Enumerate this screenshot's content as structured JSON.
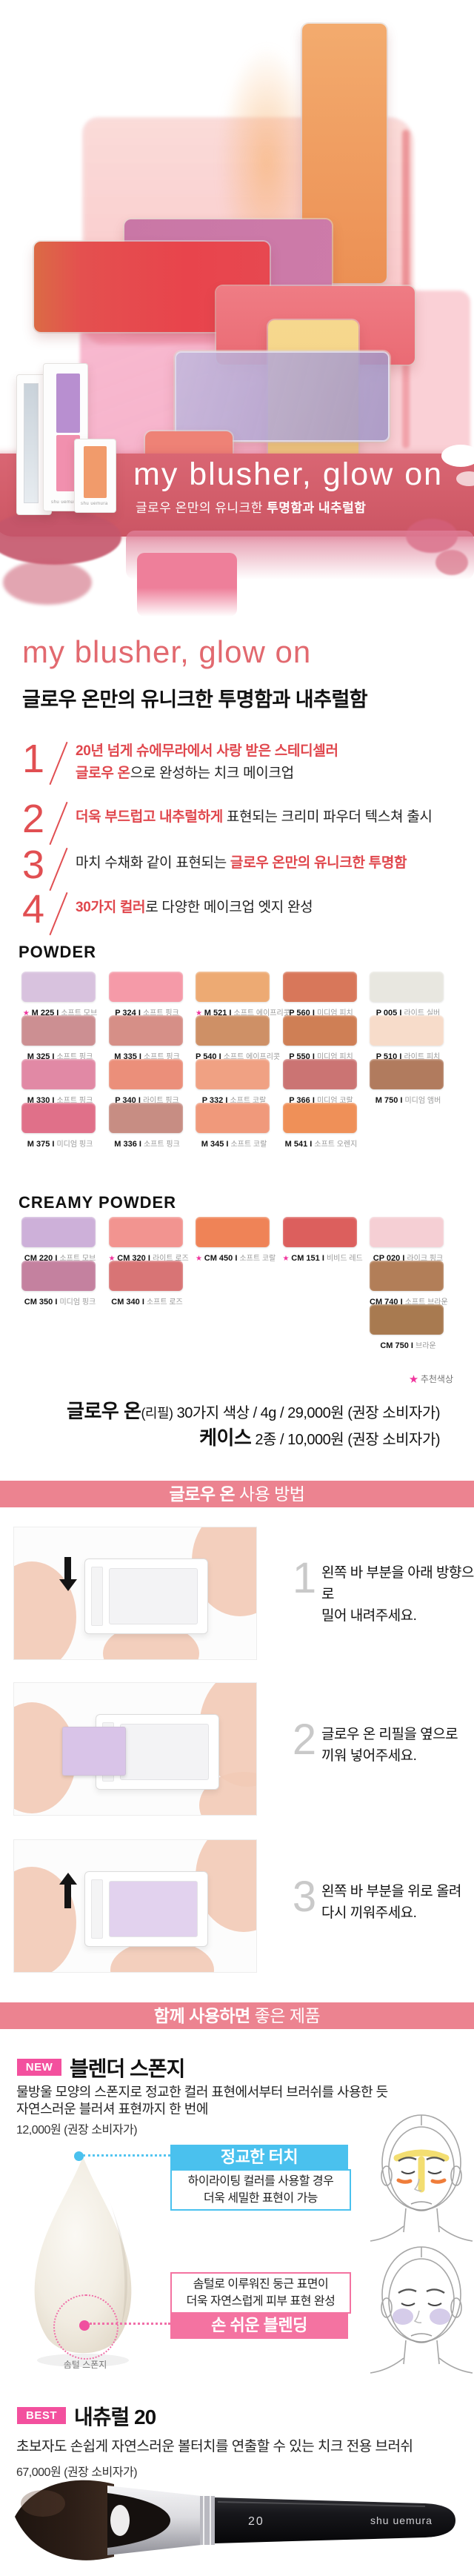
{
  "brand": "shu uemura",
  "hero": {
    "title": "my blusher, glow on",
    "subtitle_regular": "글로우 온만의 유니크한 ",
    "subtitle_bold": "투명함과 내추럴함"
  },
  "intro": {
    "title": "my blusher, glow on",
    "subtitle": "글로우 온만의 유니크한 투명함과 내추럴함"
  },
  "features": {
    "items": [
      {
        "num": "1",
        "line1_red": "20년 넘게 슈에무라에서 사랑 받은 스테디셀러",
        "line2_red": "글로우 온",
        "line2_rest": "으로 완성하는 치크 메이크업"
      },
      {
        "num": "2",
        "line1_red": "더욱 부드럽고 내추럴하게",
        "line1_rest": " 표현되는 크리미 파우더 텍스쳐 출시"
      },
      {
        "num": "3",
        "line1_pre": "마치 수채화 같이 표현되는 ",
        "line1_red": "글로우 온만의 유니크한 투명함"
      },
      {
        "num": "4",
        "line1_red": "30가지 컬러",
        "line1_rest": "로 다양한 메이크업 엣지 완성"
      }
    ]
  },
  "powder": {
    "heading": "POWDER",
    "swatches": [
      {
        "code": "M 225",
        "name": "소프트 모브",
        "color": "#d8c2de",
        "star": true,
        "row": 0,
        "col": 0
      },
      {
        "code": "P 324",
        "name": "소프트 핑크",
        "color": "#f59aa8",
        "star": false,
        "row": 0,
        "col": 1
      },
      {
        "code": "M 521",
        "name": "소프트 에이프리콧",
        "color": "#edaa73",
        "star": true,
        "row": 0,
        "col": 2
      },
      {
        "code": "P 560",
        "name": "미디엄 피치",
        "color": "#d8775a",
        "star": false,
        "row": 0,
        "col": 3
      },
      {
        "code": "P 005",
        "name": "라이트 실버",
        "color": "#e8e7e0",
        "star": false,
        "row": 0,
        "col": 4
      },
      {
        "code": "M 325",
        "name": "소프트 핑크",
        "color": "#cc8f92",
        "star": false,
        "row": 1,
        "col": 0
      },
      {
        "code": "M 335",
        "name": "소프트 핑크",
        "color": "#d68f87",
        "star": false,
        "row": 1,
        "col": 1
      },
      {
        "code": "P 540",
        "name": "소프트 에이프리콧",
        "color": "#ce9066",
        "star": false,
        "row": 1,
        "col": 2
      },
      {
        "code": "P 550",
        "name": "미디엄 피치",
        "color": "#cf7f55",
        "star": false,
        "row": 1,
        "col": 3
      },
      {
        "code": "P 510",
        "name": "라이트 피치",
        "color": "#f7dcca",
        "star": false,
        "row": 1,
        "col": 4
      },
      {
        "code": "M 330",
        "name": "소프트 핑크",
        "color": "#e189a5",
        "star": false,
        "row": 2,
        "col": 0
      },
      {
        "code": "P 340",
        "name": "라이트 핑크",
        "color": "#eb8f7a",
        "star": false,
        "row": 2,
        "col": 1
      },
      {
        "code": "P 332",
        "name": "소프트 코랄",
        "color": "#f0a183",
        "star": false,
        "row": 2,
        "col": 2
      },
      {
        "code": "P 366",
        "name": "미디엄 코랄",
        "color": "#cb7473",
        "star": false,
        "row": 2,
        "col": 3
      },
      {
        "code": "M 750",
        "name": "미디엄 앰버",
        "color": "#b17b5e",
        "star": false,
        "row": 2,
        "col": 4
      },
      {
        "code": "M 375",
        "name": "미디엄 핑크",
        "color": "#e07089",
        "star": false,
        "row": 3,
        "col": 0
      },
      {
        "code": "M 336",
        "name": "소프트 핑크",
        "color": "#c78d83",
        "star": false,
        "row": 3,
        "col": 1
      },
      {
        "code": "M 345",
        "name": "소프트 코랄",
        "color": "#f0997b",
        "star": false,
        "row": 3,
        "col": 2
      },
      {
        "code": "M 541",
        "name": "소프트 오렌지",
        "color": "#ef9058",
        "star": false,
        "row": 3,
        "col": 3
      }
    ]
  },
  "creamy": {
    "heading": "CREAMY POWDER",
    "swatches": [
      {
        "code": "CM 220",
        "name": "소프트 모브",
        "color": "#cdb0d9",
        "star": false,
        "row": 0,
        "col": 0
      },
      {
        "code": "CM 320",
        "name": "라이트 로즈",
        "color": "#f29490",
        "star": true,
        "row": 0,
        "col": 1
      },
      {
        "code": "CM 450",
        "name": "소프트 코랄",
        "color": "#ef8357",
        "star": true,
        "row": 0,
        "col": 2
      },
      {
        "code": "CM 151",
        "name": "비비드 레드",
        "color": "#dc5f5d",
        "star": true,
        "row": 0,
        "col": 3
      },
      {
        "code": "CP 020",
        "name": "라이크 핑크",
        "color": "#f5cfd4",
        "star": false,
        "row": 0,
        "col": 4
      },
      {
        "code": "CM 350",
        "name": "미디엄 핑크",
        "color": "#c4819f",
        "star": false,
        "row": 1,
        "col": 0
      },
      {
        "code": "CM 340",
        "name": "소프트 로즈",
        "color": "#d87475",
        "star": false,
        "row": 1,
        "col": 1
      },
      {
        "code": "CM 740",
        "name": "소프트 브라운",
        "color": "#b27e58",
        "star": false,
        "row": 1,
        "col": 4
      },
      {
        "code": "CM 750",
        "name": "브라운",
        "color": "#a87a50",
        "star": false,
        "row": 2,
        "col": 4
      }
    ]
  },
  "legend": {
    "star": "★",
    "label": "추천색상"
  },
  "price": {
    "line1_bold": "글로우 온",
    "line1_small": "(리필)",
    "line1_rest": " 30가지 색상 / 4g / 29,000원 (권장 소비자가)",
    "line2_bold": "케이스",
    "line2_rest": " 2종 / 10,000원 (권장 소비자가)"
  },
  "banners": {
    "usage_bold": "글로우 온",
    "usage_rest": " 사용 방법",
    "together_bold": "함께 사용하면",
    "together_rest": " 좋은 제품"
  },
  "usage": {
    "steps": [
      {
        "num": "1",
        "line1": "왼쪽 바 부분을 아래 방향으로",
        "line2": "밀어 내려주세요."
      },
      {
        "num": "2",
        "line1": "글로우 온 리필을 옆으로",
        "line2": "끼워 넣어주세요."
      },
      {
        "num": "3",
        "line1": "왼쪽 바 부분을 위로 올려",
        "line2": "다시 끼워주세요."
      }
    ]
  },
  "new_product": {
    "badge": "NEW",
    "title": "블렌더 스폰지",
    "desc1": "물방울 모양의 스폰지로 정교한 컬러 표현에서부터 브러쉬를 사용한 듯",
    "desc2": "자연스러운 블러셔 표현까지 한 번에",
    "price": "12,000원 (권장 소비자가)",
    "callout_blue": {
      "title": "정교한 터치",
      "line1": "하이라이팅 컬러를 사용할 경우",
      "line2": "더욱 세밀한 표현이 가능"
    },
    "callout_pink": {
      "line1": "솜털로 이루워진 둥근 표면이",
      "line2": "더욱 자연스럽게 피부 표현 완성",
      "title": "손 쉬운 블렌딩"
    },
    "sponge_label": "솜털 스폰지"
  },
  "best_product": {
    "badge": "BEST",
    "title": "내츄럴 20",
    "desc": "초보자도 손쉽게 자연스러운 볼터치를 연출할 수 있는 치크 전용 브러쉬",
    "price": "67,000원 (권장 소비자가)",
    "brush_number": "20"
  },
  "colors": {
    "accent_red": "#e0474d",
    "banner_pink": "#ec8390",
    "badge_pink": "#f3509e",
    "callout_blue": "#4ac1ee",
    "callout_pink": "#f473a1",
    "star_pink": "#f0339c"
  }
}
